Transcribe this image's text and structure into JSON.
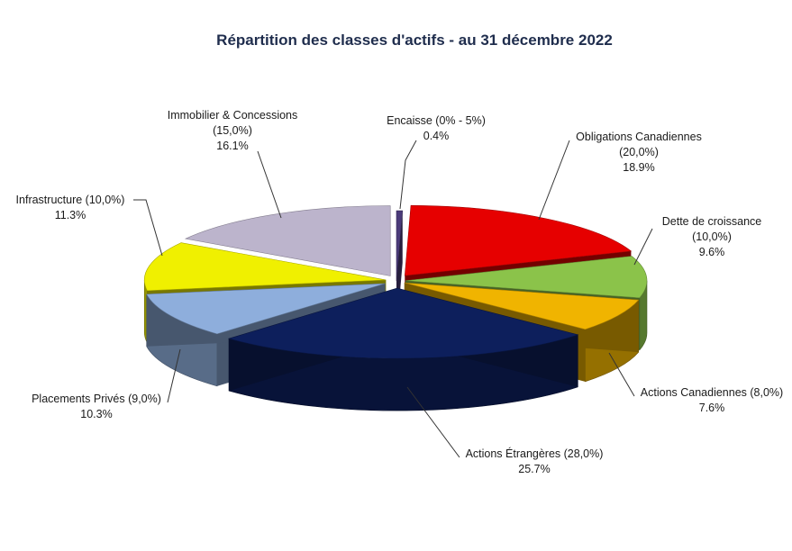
{
  "chart_data": {
    "type": "pie",
    "title": "Répartition des classes d'actifs - au 31 décembre 2022",
    "slices": [
      {
        "name": "Encaisse (0% - 5%)",
        "value": 0.4,
        "value_label": "0.4%",
        "color": "#4b3b7a"
      },
      {
        "name": "Obligations Canadiennes",
        "target": "(20,0%)",
        "value": 18.9,
        "value_label": "18.9%",
        "color": "#e60000"
      },
      {
        "name": "Dette de croissance",
        "target": "(10,0%)",
        "value": 9.6,
        "value_label": "9.6%",
        "color": "#8bc34a"
      },
      {
        "name": "Actions Canadiennes (8,0%)",
        "value": 7.6,
        "value_label": "7.6%",
        "color": "#f0b400"
      },
      {
        "name": "Actions Étrangères (28,0%)",
        "value": 25.7,
        "value_label": "25.7%",
        "color": "#0d1f5c"
      },
      {
        "name": "Placements Privés (9,0%)",
        "value": 10.3,
        "value_label": "10.3%",
        "color": "#8eaedc"
      },
      {
        "name": "Infrastructure (10,0%)",
        "value": 11.3,
        "value_label": "11.3%",
        "color": "#f0f000"
      },
      {
        "name": "Immobilier & Concessions",
        "target": "(15,0%)",
        "value": 16.1,
        "value_label": "16.1%",
        "color": "#bcb4cc"
      }
    ],
    "legend": "none",
    "style": "3d-exploded"
  }
}
